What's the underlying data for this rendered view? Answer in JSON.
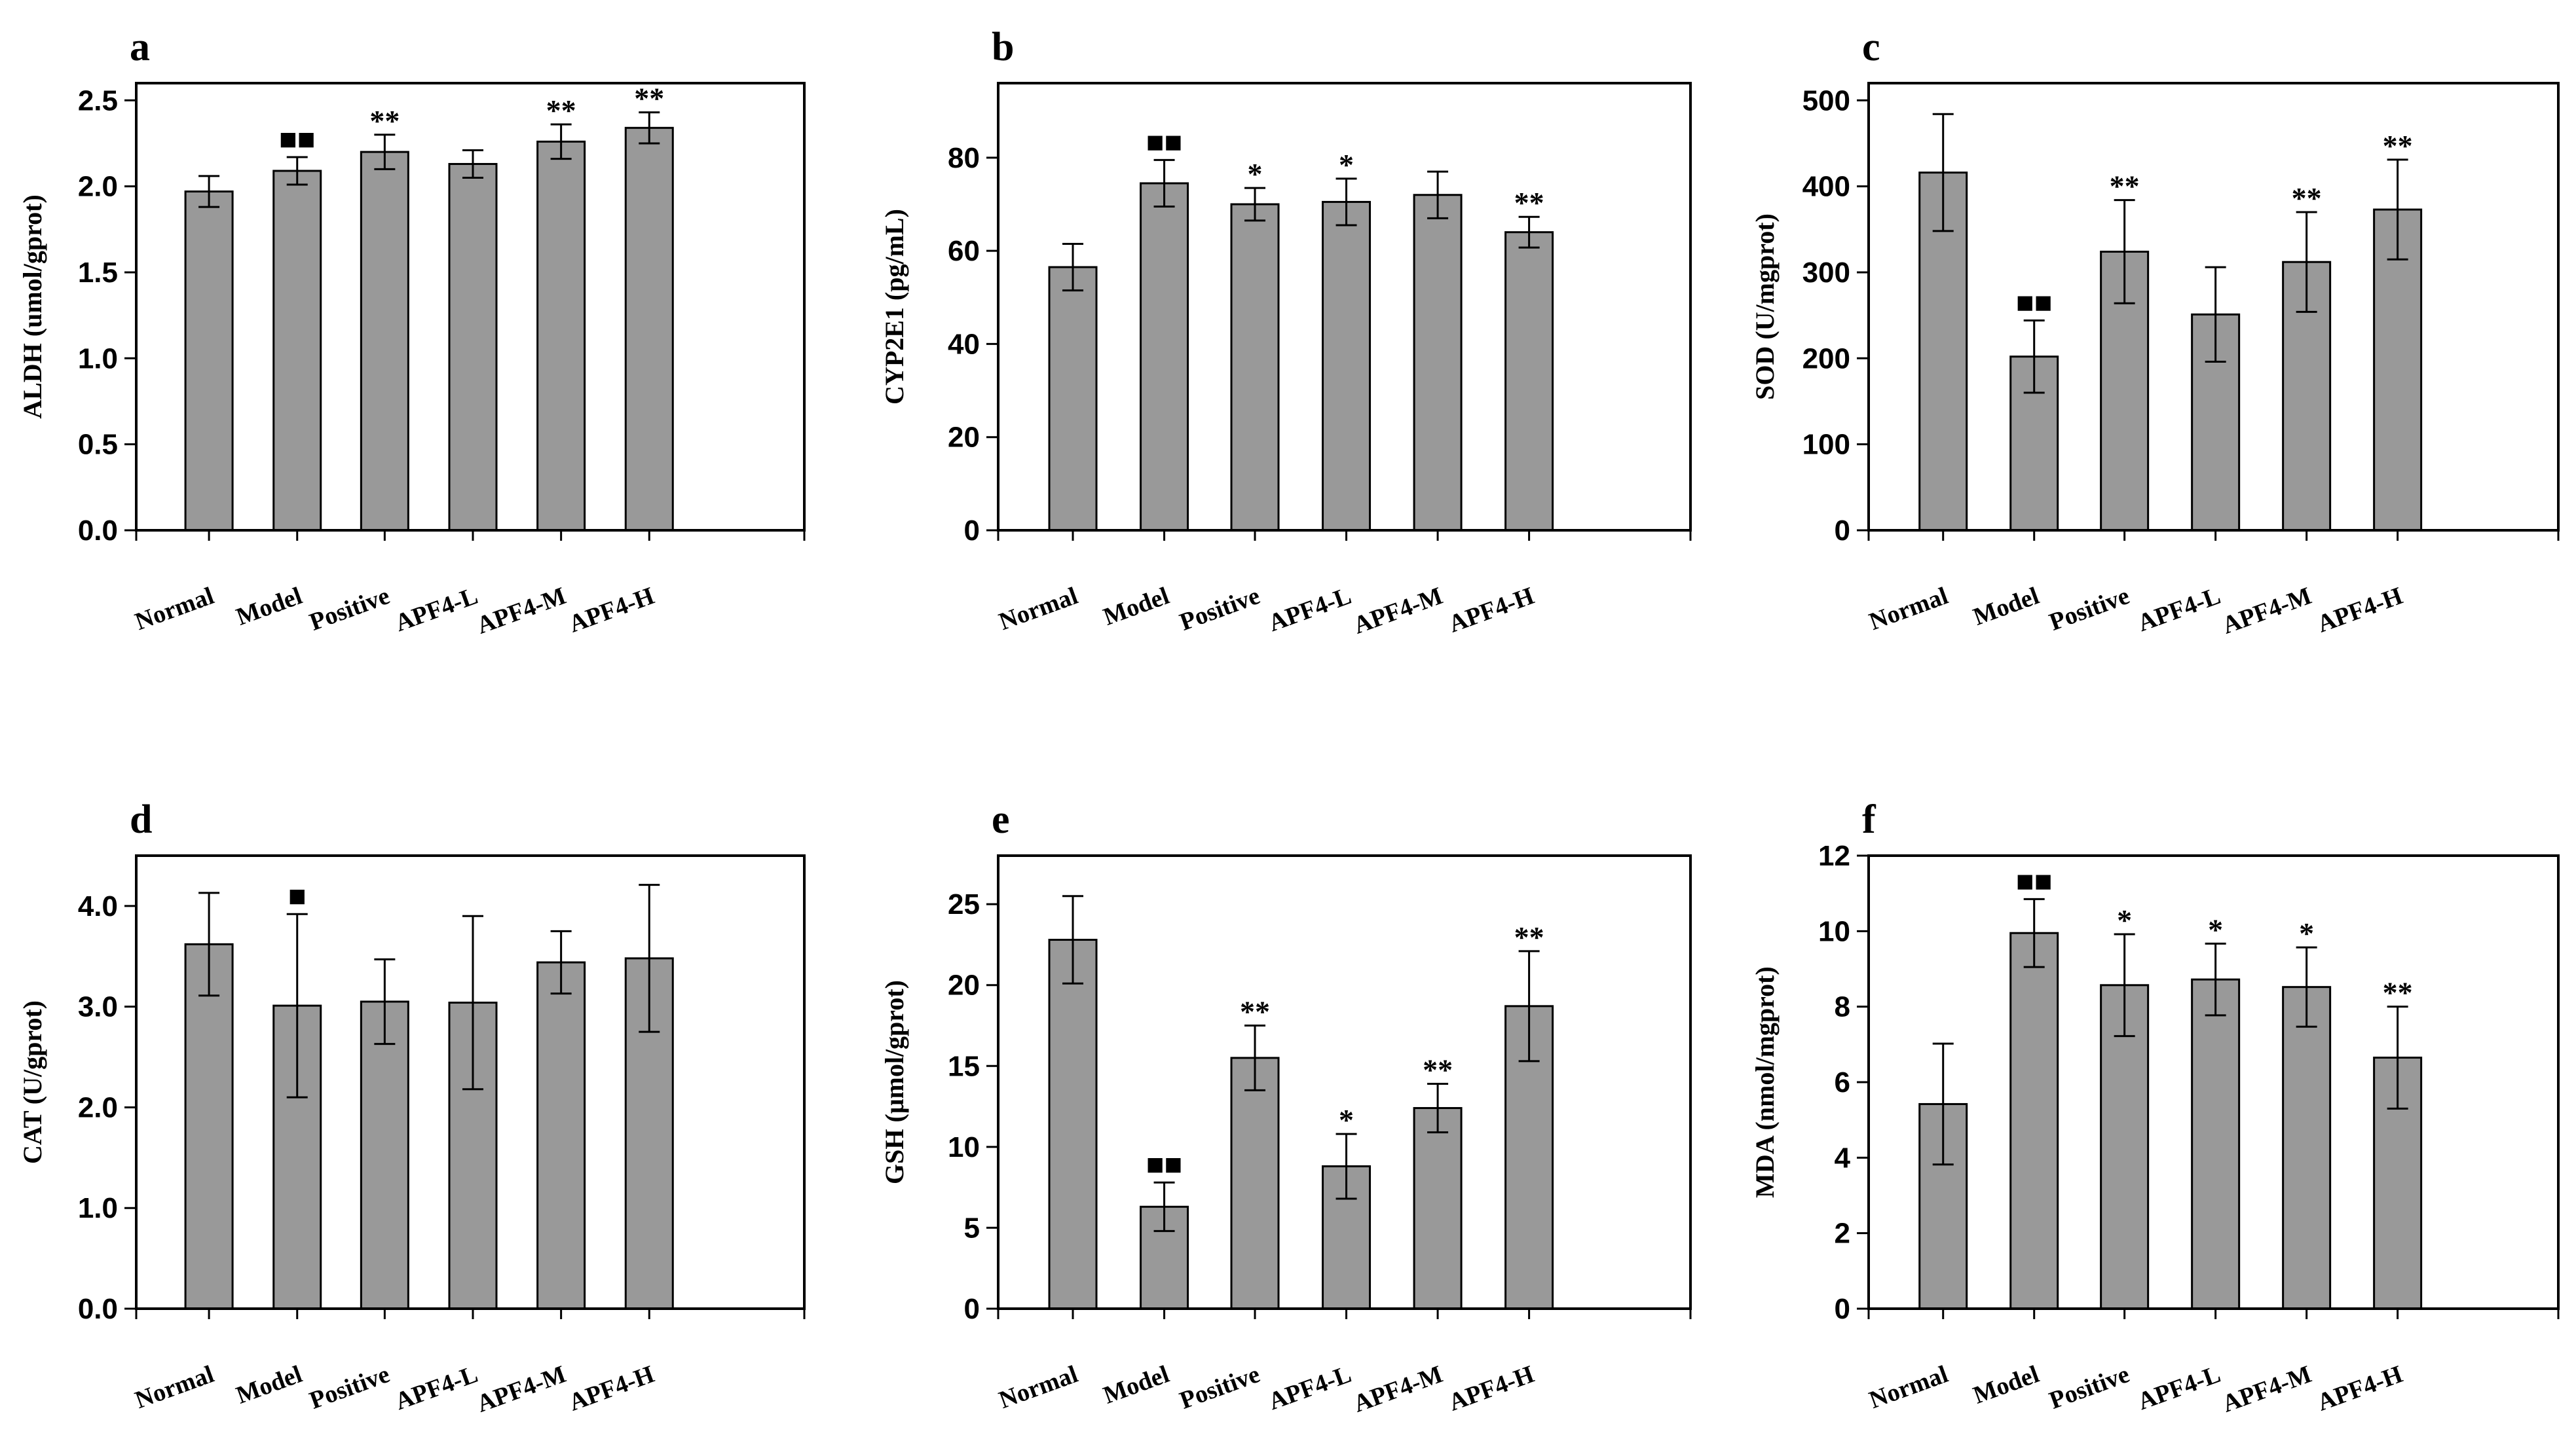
{
  "figure": {
    "groups": [
      "Normal",
      "Model",
      "Positive",
      "APF4-L",
      "APF4-M",
      "APF4-H"
    ]
  },
  "chart_data": [
    {
      "panel": "a",
      "type": "bar",
      "ylabel": "ALDH (umol/gprot)",
      "ylim": [
        0,
        2.6
      ],
      "yticks": [
        0,
        0.5,
        1.0,
        1.5,
        2.0,
        2.5
      ],
      "ytick_labels": [
        "0.0",
        "0.5",
        "1.0",
        "1.5",
        "2.0",
        "2.5"
      ],
      "categories": [
        "Normal",
        "Model",
        "Positive",
        "APF4-L",
        "APF4-M",
        "APF4-H"
      ],
      "values": [
        1.97,
        2.09,
        2.2,
        2.13,
        2.26,
        2.34
      ],
      "errors": [
        0.09,
        0.08,
        0.1,
        0.08,
        0.1,
        0.09
      ],
      "annotations": [
        "",
        "■■",
        "**",
        "",
        "**",
        "**"
      ],
      "bar_color": "#999999"
    },
    {
      "panel": "b",
      "type": "bar",
      "ylabel": "CYP2E1 (pg/mL)",
      "ylim": [
        0,
        96
      ],
      "yticks": [
        0,
        20,
        40,
        60,
        80
      ],
      "ytick_labels": [
        "0",
        "20",
        "40",
        "60",
        "80"
      ],
      "categories": [
        "Normal",
        "Model",
        "Positive",
        "APF4-L",
        "APF4-M",
        "APF4-H"
      ],
      "values": [
        56.5,
        74.5,
        70,
        70.5,
        72,
        64
      ],
      "errors": [
        5,
        5,
        3.5,
        5,
        5,
        3.3
      ],
      "annotations": [
        "",
        "■■",
        "*",
        "*",
        "",
        "**"
      ],
      "bar_color": "#999999"
    },
    {
      "panel": "c",
      "type": "bar",
      "ylabel": "SOD (U/mgprot)",
      "ylim": [
        0,
        520
      ],
      "yticks": [
        0,
        100,
        200,
        300,
        400,
        500
      ],
      "ytick_labels": [
        "0",
        "100",
        "200",
        "300",
        "400",
        "500"
      ],
      "categories": [
        "Normal",
        "Model",
        "Positive",
        "APF4-L",
        "APF4-M",
        "APF4-H"
      ],
      "values": [
        416,
        202,
        324,
        251,
        312,
        373
      ],
      "errors": [
        68,
        42,
        60,
        55,
        58,
        58
      ],
      "annotations": [
        "",
        "■■",
        "**",
        "",
        "**",
        "**"
      ],
      "bar_color": "#999999"
    },
    {
      "panel": "d",
      "type": "bar",
      "ylabel": "CAT (U/gprot)",
      "ylim": [
        0,
        4.5
      ],
      "yticks": [
        0,
        1.0,
        2.0,
        3.0,
        4.0
      ],
      "ytick_labels": [
        "0.0",
        "1.0",
        "2.0",
        "3.0",
        "4.0"
      ],
      "categories": [
        "Normal",
        "Model",
        "Positive",
        "APF4-L",
        "APF4-M",
        "APF4-H"
      ],
      "values": [
        3.62,
        3.01,
        3.05,
        3.04,
        3.44,
        3.48
      ],
      "errors": [
        0.51,
        0.91,
        0.42,
        0.86,
        0.31,
        0.73
      ],
      "annotations": [
        "",
        "■",
        "",
        "",
        "",
        ""
      ],
      "bar_color": "#999999"
    },
    {
      "panel": "e",
      "type": "bar",
      "ylabel": "GSH (μmol/gprot)",
      "ylim": [
        0,
        28
      ],
      "yticks": [
        0,
        5,
        10,
        15,
        20,
        25
      ],
      "ytick_labels": [
        "0",
        "5",
        "10",
        "15",
        "20",
        "25"
      ],
      "categories": [
        "Normal",
        "Model",
        "Positive",
        "APF4-L",
        "APF4-M",
        "APF4-H"
      ],
      "values": [
        22.8,
        6.3,
        15.5,
        8.8,
        12.4,
        18.7
      ],
      "errors": [
        2.7,
        1.5,
        2.0,
        2.0,
        1.5,
        3.4
      ],
      "annotations": [
        "",
        "■■",
        "**",
        "*",
        "**",
        "**"
      ],
      "bar_color": "#999999"
    },
    {
      "panel": "f",
      "type": "bar",
      "ylabel": "MDA (nmol/mgprot)",
      "ylim": [
        0,
        12
      ],
      "yticks": [
        0,
        2,
        4,
        6,
        8,
        10,
        12
      ],
      "ytick_labels": [
        "0",
        "2",
        "4",
        "6",
        "8",
        "10",
        "12"
      ],
      "categories": [
        "Normal",
        "Model",
        "Positive",
        "APF4-L",
        "APF4-M",
        "APF4-H"
      ],
      "values": [
        5.42,
        9.95,
        8.57,
        8.72,
        8.52,
        6.65
      ],
      "errors": [
        1.6,
        0.9,
        1.35,
        0.95,
        1.05,
        1.35
      ],
      "annotations": [
        "",
        "■■",
        "*",
        "*",
        "*",
        "**"
      ],
      "bar_color": "#999999"
    }
  ]
}
